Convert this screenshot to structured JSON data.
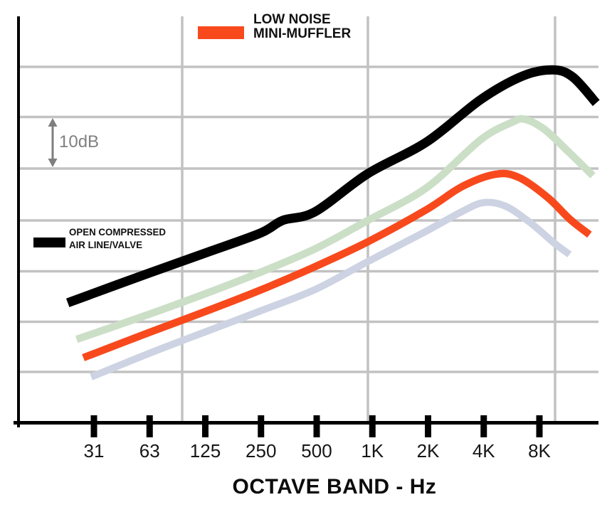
{
  "chart_data": {
    "type": "line",
    "title": "",
    "xlabel": "OCTAVE BAND - Hz",
    "ylabel": "",
    "x_scale": "octave (log2), one octave per tick",
    "x_tick_labels": [
      "31",
      "63",
      "125",
      "250",
      "500",
      "1K",
      "2K",
      "4K",
      "8K"
    ],
    "y_axis": {
      "tick_labels_shown": false,
      "units": "dB (relative sound level)",
      "gridline_step_dB": 10,
      "scale_indicator_label": "10dB"
    },
    "grid": "on",
    "legends": {
      "muffler": {
        "lines": [
          "LOW NOISE",
          "MINI-MUFFLER"
        ],
        "swatch_color": "#F8491D",
        "position": "top-center"
      },
      "open_line": {
        "lines": [
          "OPEN COMPRESSED",
          "AIR LINE/VALVE"
        ],
        "swatch_color": "#000000",
        "position": "left-middle"
      }
    },
    "series": [
      {
        "name": "OPEN COMPRESSED AIR LINE/VALVE",
        "color": "#000000",
        "octave_band_from_31Hz": [
          -0.47,
          0.98,
          2.03,
          2.99,
          3.39,
          3.97,
          4.92,
          5.97,
          6.95,
          7.7,
          8.24,
          8.6,
          9.02
        ],
        "dB_relative": [
          13.6,
          19.4,
          23.5,
          27.3,
          29.8,
          31.5,
          39.0,
          45.2,
          53.6,
          58.2,
          59.4,
          58.0,
          52.9
        ]
      },
      {
        "name": "unlabeled-light-green-line",
        "color": "#CBDFC7",
        "octave_band_from_31Hz": [
          -0.31,
          0.98,
          2.03,
          2.99,
          3.97,
          4.92,
          5.97,
          6.95,
          7.51,
          7.73,
          8.09,
          8.54,
          8.96
        ],
        "dB_relative": [
          6.4,
          11.3,
          15.5,
          19.6,
          24.2,
          29.8,
          36.2,
          45.7,
          49.1,
          49.7,
          47.7,
          43.1,
          38.6
        ]
      },
      {
        "name": "LOW NOISE MINI-MUFFLER",
        "color": "#F8491D",
        "octave_band_from_31Hz": [
          -0.19,
          0.98,
          2.03,
          2.99,
          3.97,
          4.92,
          5.97,
          6.62,
          7.22,
          7.64,
          8.15,
          8.54,
          8.9
        ],
        "dB_relative": [
          2.8,
          7.7,
          12.0,
          16.1,
          20.7,
          25.6,
          31.9,
          36.5,
          38.9,
          38.2,
          34.3,
          30.1,
          27.0
        ]
      },
      {
        "name": "unlabeled-lavender-line",
        "color": "#CDD3E2",
        "octave_band_from_31Hz": [
          -0.05,
          0.98,
          2.03,
          2.99,
          3.97,
          4.92,
          5.97,
          6.62,
          7.0,
          7.39,
          7.83,
          8.28,
          8.54
        ],
        "dB_relative": [
          -1.0,
          3.6,
          8.0,
          12.0,
          16.2,
          21.7,
          27.7,
          31.6,
          33.3,
          32.6,
          29.4,
          25.2,
          23.1
        ]
      }
    ]
  }
}
